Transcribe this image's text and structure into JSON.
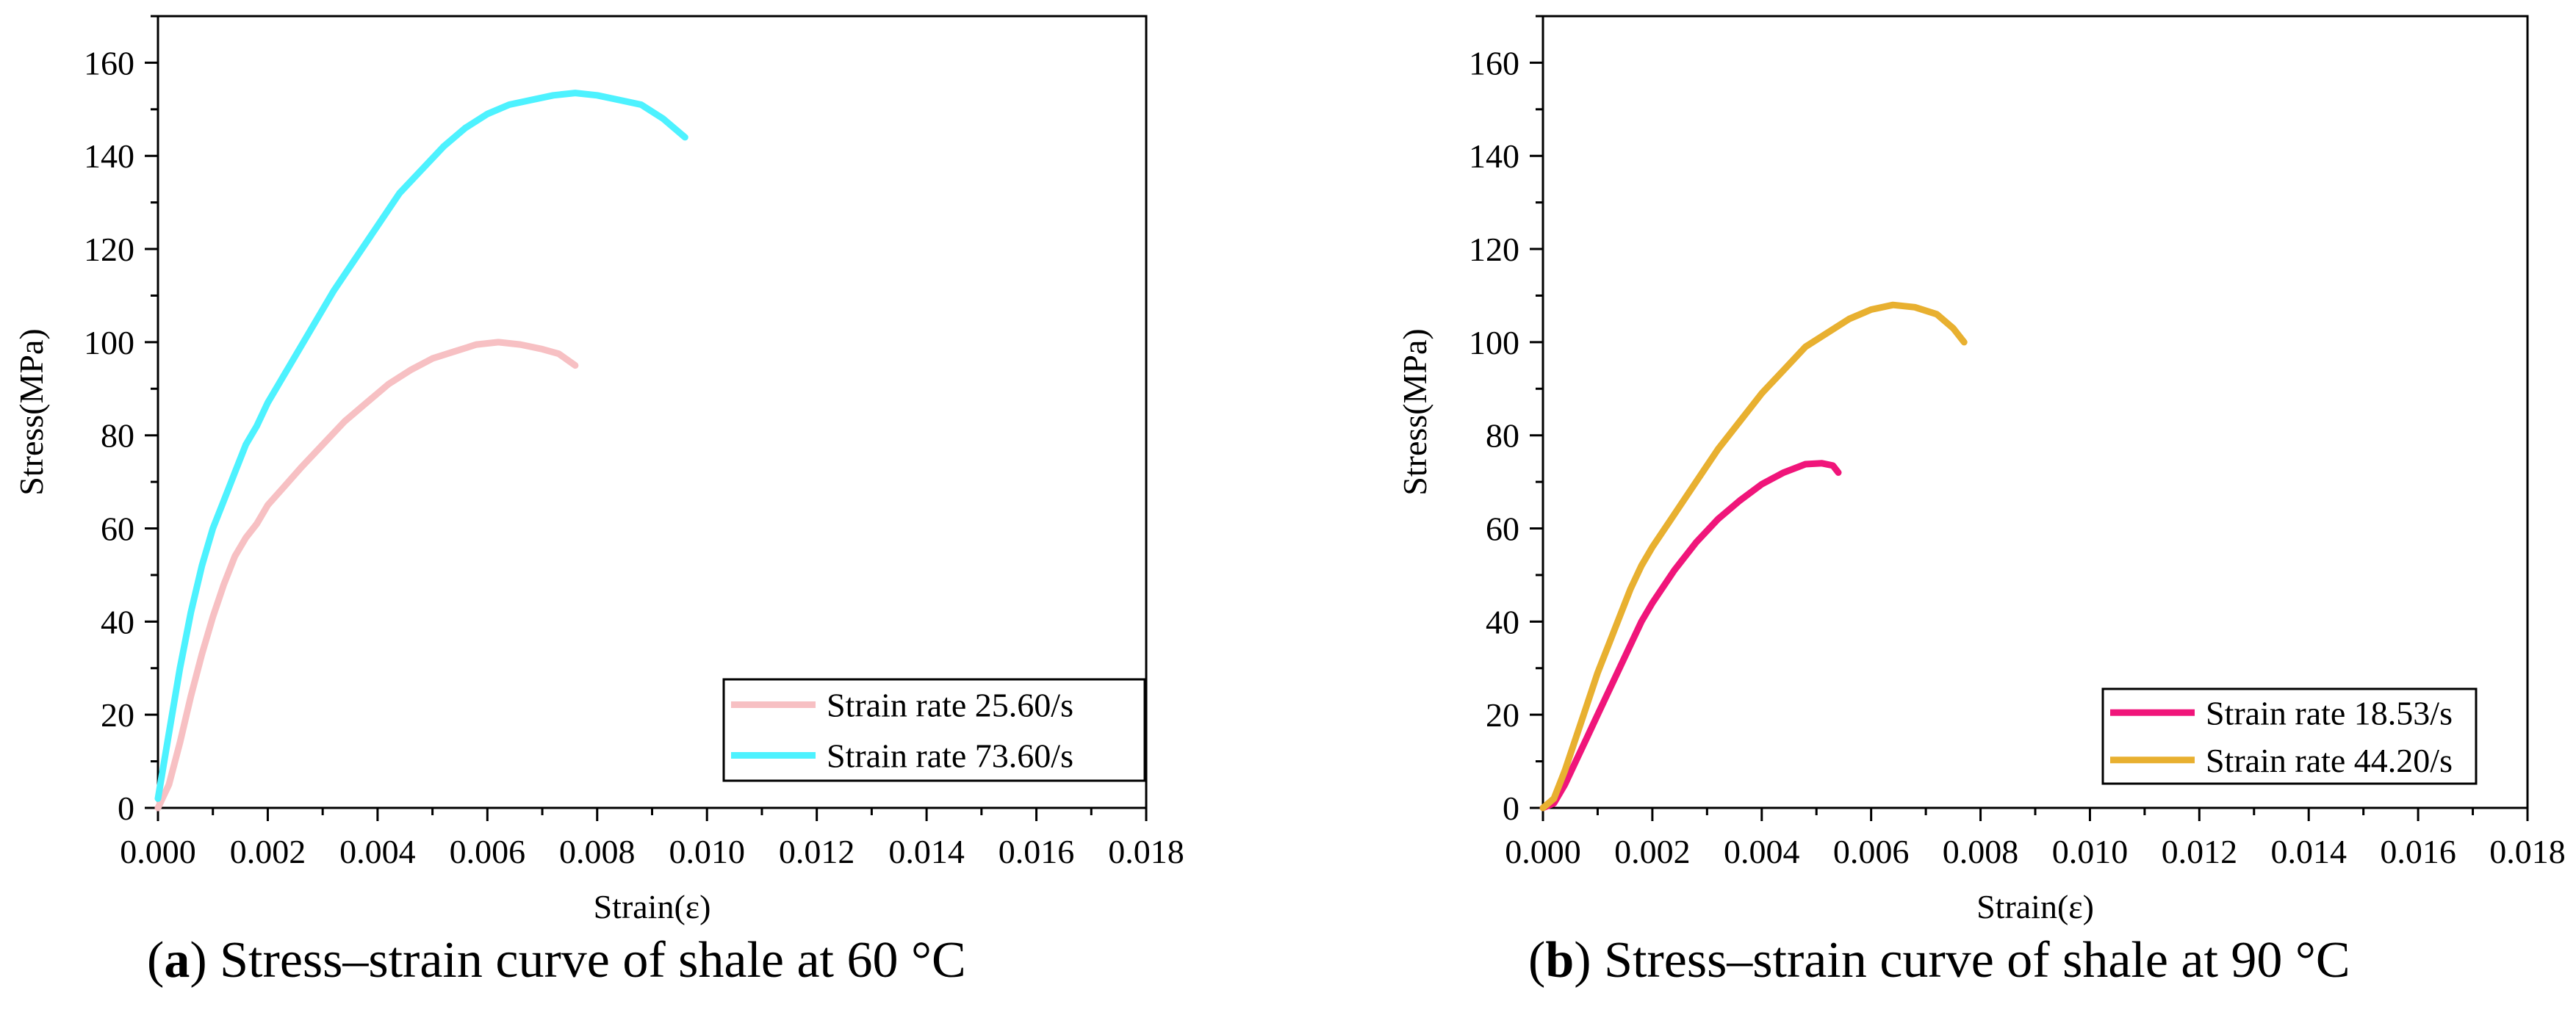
{
  "captions": [
    {
      "letter": "a",
      "text": " Stress–strain curve of shale at 60 °C"
    },
    {
      "letter": "b",
      "text": " Stress–strain curve of shale at 90 °C"
    }
  ],
  "chart_data": [
    {
      "type": "line",
      "title": "",
      "xlabel": "Strain(ε)",
      "ylabel": "Stress(MPa)",
      "xlim": [
        0,
        0.018
      ],
      "ylim": [
        0,
        170
      ],
      "xticks": [
        "0.000",
        "0.002",
        "0.004",
        "0.006",
        "0.008",
        "0.010",
        "0.012",
        "0.014",
        "0.016",
        "0.018"
      ],
      "yticks": [
        "0",
        "20",
        "40",
        "60",
        "80",
        "100",
        "120",
        "140",
        "160"
      ],
      "grid": false,
      "legend": "bottom-right",
      "series": [
        {
          "name": "Strain rate 25.60/s",
          "color": "#f7c0c3",
          "points": [
            [
              0.0,
              0
            ],
            [
              0.0002,
              5
            ],
            [
              0.0004,
              14
            ],
            [
              0.0006,
              24
            ],
            [
              0.0008,
              33
            ],
            [
              0.001,
              41
            ],
            [
              0.0012,
              48
            ],
            [
              0.0014,
              54
            ],
            [
              0.0016,
              58
            ],
            [
              0.0018,
              61
            ],
            [
              0.002,
              65
            ],
            [
              0.0023,
              69
            ],
            [
              0.0026,
              73
            ],
            [
              0.003,
              78
            ],
            [
              0.0034,
              83
            ],
            [
              0.0038,
              87
            ],
            [
              0.0042,
              91
            ],
            [
              0.0046,
              94
            ],
            [
              0.005,
              96.5
            ],
            [
              0.0054,
              98
            ],
            [
              0.0058,
              99.5
            ],
            [
              0.0062,
              100
            ],
            [
              0.0066,
              99.5
            ],
            [
              0.007,
              98.5
            ],
            [
              0.0073,
              97.5
            ],
            [
              0.0076,
              95
            ]
          ]
        },
        {
          "name": "Strain rate 73.60/s",
          "color": "#4df2ff",
          "points": [
            [
              0.0,
              2
            ],
            [
              0.0002,
              16
            ],
            [
              0.0004,
              30
            ],
            [
              0.0006,
              42
            ],
            [
              0.0008,
              52
            ],
            [
              0.001,
              60
            ],
            [
              0.0012,
              66
            ],
            [
              0.0014,
              72
            ],
            [
              0.0016,
              78
            ],
            [
              0.0018,
              82
            ],
            [
              0.002,
              87
            ],
            [
              0.0024,
              95
            ],
            [
              0.0028,
              103
            ],
            [
              0.0032,
              111
            ],
            [
              0.0036,
              118
            ],
            [
              0.004,
              125
            ],
            [
              0.0044,
              132
            ],
            [
              0.0048,
              137
            ],
            [
              0.0052,
              142
            ],
            [
              0.0056,
              146
            ],
            [
              0.006,
              149
            ],
            [
              0.0064,
              151
            ],
            [
              0.0068,
              152
            ],
            [
              0.0072,
              153
            ],
            [
              0.0076,
              153.5
            ],
            [
              0.008,
              153
            ],
            [
              0.0084,
              152
            ],
            [
              0.0088,
              151
            ],
            [
              0.0092,
              148
            ],
            [
              0.0096,
              144
            ]
          ]
        }
      ]
    },
    {
      "type": "line",
      "title": "",
      "xlabel": "Strain(ε)",
      "ylabel": "Stress(MPa)",
      "xlim": [
        0,
        0.018
      ],
      "ylim": [
        0,
        170
      ],
      "xticks": [
        "0.000",
        "0.002",
        "0.004",
        "0.006",
        "0.008",
        "0.010",
        "0.012",
        "0.014",
        "0.016",
        "0.018"
      ],
      "yticks": [
        "0",
        "20",
        "40",
        "60",
        "80",
        "100",
        "120",
        "140",
        "160"
      ],
      "grid": false,
      "legend": "bottom-right",
      "series": [
        {
          "name": "Strain rate 18.53/s",
          "color": "#f0157a",
          "points": [
            [
              0.0,
              0
            ],
            [
              0.0002,
              1
            ],
            [
              0.0004,
              5
            ],
            [
              0.0006,
              10
            ],
            [
              0.0008,
              15
            ],
            [
              0.001,
              20
            ],
            [
              0.0012,
              25
            ],
            [
              0.0014,
              30
            ],
            [
              0.0016,
              35
            ],
            [
              0.0018,
              40
            ],
            [
              0.002,
              44
            ],
            [
              0.0024,
              51
            ],
            [
              0.0028,
              57
            ],
            [
              0.0032,
              62
            ],
            [
              0.0036,
              66
            ],
            [
              0.004,
              69.5
            ],
            [
              0.0044,
              72
            ],
            [
              0.0048,
              73.8
            ],
            [
              0.0051,
              74
            ],
            [
              0.0053,
              73.5
            ],
            [
              0.0054,
              72
            ]
          ]
        },
        {
          "name": "Strain rate 44.20/s",
          "color": "#e8b030",
          "points": [
            [
              0.0,
              0
            ],
            [
              0.0002,
              2
            ],
            [
              0.0004,
              8
            ],
            [
              0.0006,
              15
            ],
            [
              0.0008,
              22
            ],
            [
              0.001,
              29
            ],
            [
              0.0012,
              35
            ],
            [
              0.0014,
              41
            ],
            [
              0.0016,
              47
            ],
            [
              0.0018,
              52
            ],
            [
              0.002,
              56
            ],
            [
              0.0024,
              63
            ],
            [
              0.0028,
              70
            ],
            [
              0.0032,
              77
            ],
            [
              0.0036,
              83
            ],
            [
              0.004,
              89
            ],
            [
              0.0044,
              94
            ],
            [
              0.0048,
              99
            ],
            [
              0.0052,
              102
            ],
            [
              0.0056,
              105
            ],
            [
              0.006,
              107
            ],
            [
              0.0064,
              108
            ],
            [
              0.0068,
              107.5
            ],
            [
              0.0072,
              106
            ],
            [
              0.0075,
              103
            ],
            [
              0.0077,
              100
            ]
          ]
        }
      ]
    }
  ]
}
